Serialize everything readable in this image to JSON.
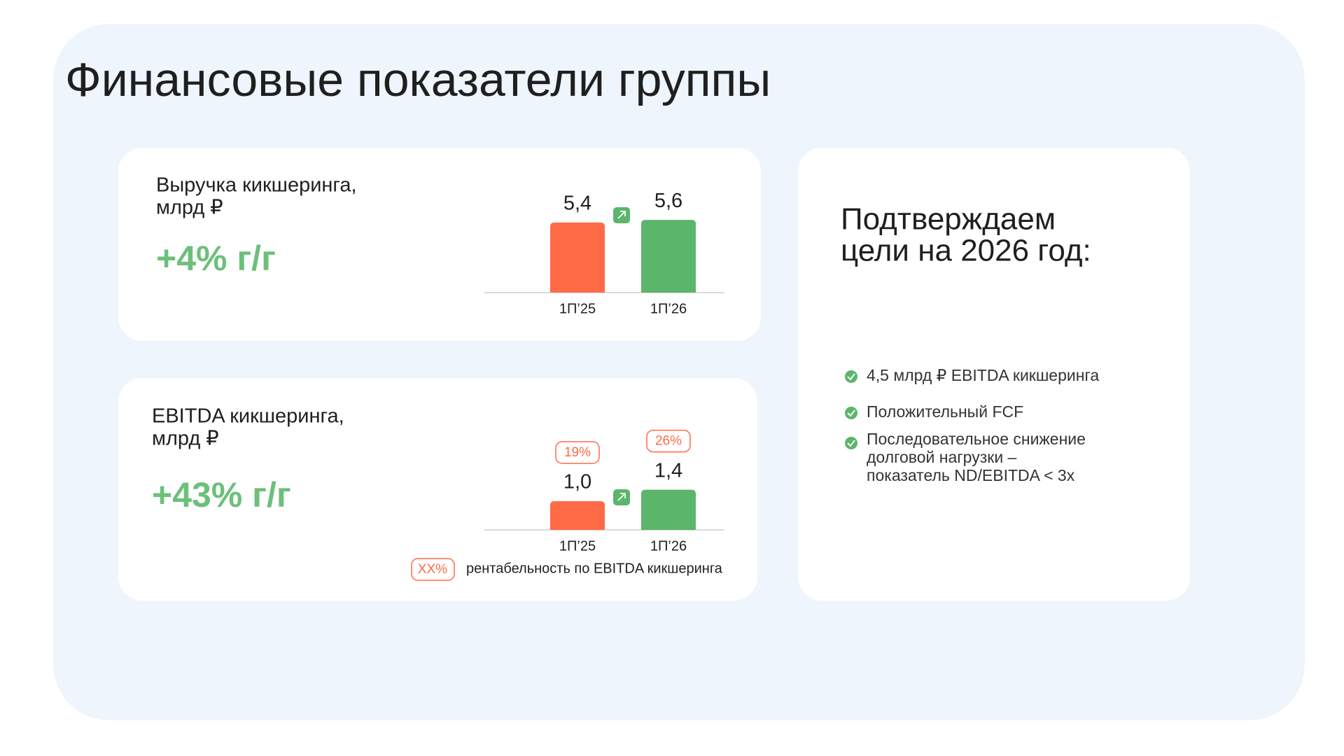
{
  "title": "Финансовые показатели группы",
  "chart_data": [
    {
      "type": "bar",
      "title_lines": [
        "Выручка кикшеринга,",
        "млрд ₽"
      ],
      "subtitle": "+4% г/г",
      "categories": [
        "1П’25",
        "1П’26"
      ],
      "values": [
        5.4,
        5.6
      ],
      "value_labels": [
        "5,4",
        "5,6"
      ],
      "colors": [
        "#ff6a47",
        "#5bb56a"
      ],
      "ylim": [
        0,
        6.2
      ]
    },
    {
      "type": "bar",
      "title_lines": [
        "EBITDA кикшеринга,",
        "млрд ₽"
      ],
      "subtitle": "+43% г/г",
      "categories": [
        "1П’25",
        "1П’26"
      ],
      "values": [
        1.0,
        1.4
      ],
      "value_labels": [
        "1,0",
        "1,4"
      ],
      "colors": [
        "#ff6a47",
        "#5bb56a"
      ],
      "ylim": [
        0,
        4
      ],
      "annotations": [
        {
          "value": 19,
          "label": "19%"
        },
        {
          "value": 26,
          "label": "26%"
        }
      ],
      "legend": {
        "sample": "XX%",
        "label": "рентабельность по EBITDA кикшеринга"
      }
    }
  ],
  "goals": {
    "heading_lines": [
      "Подтверждаем",
      "цели на 2026 год:"
    ],
    "items": [
      [
        "4,5 млрд ₽ EBITDA кикшеринга"
      ],
      [
        "Положительный FCF"
      ],
      [
        "Последовательное снижение",
        "долговой нагрузки –",
        "показатель ND/EBITDA < 3x"
      ]
    ]
  }
}
